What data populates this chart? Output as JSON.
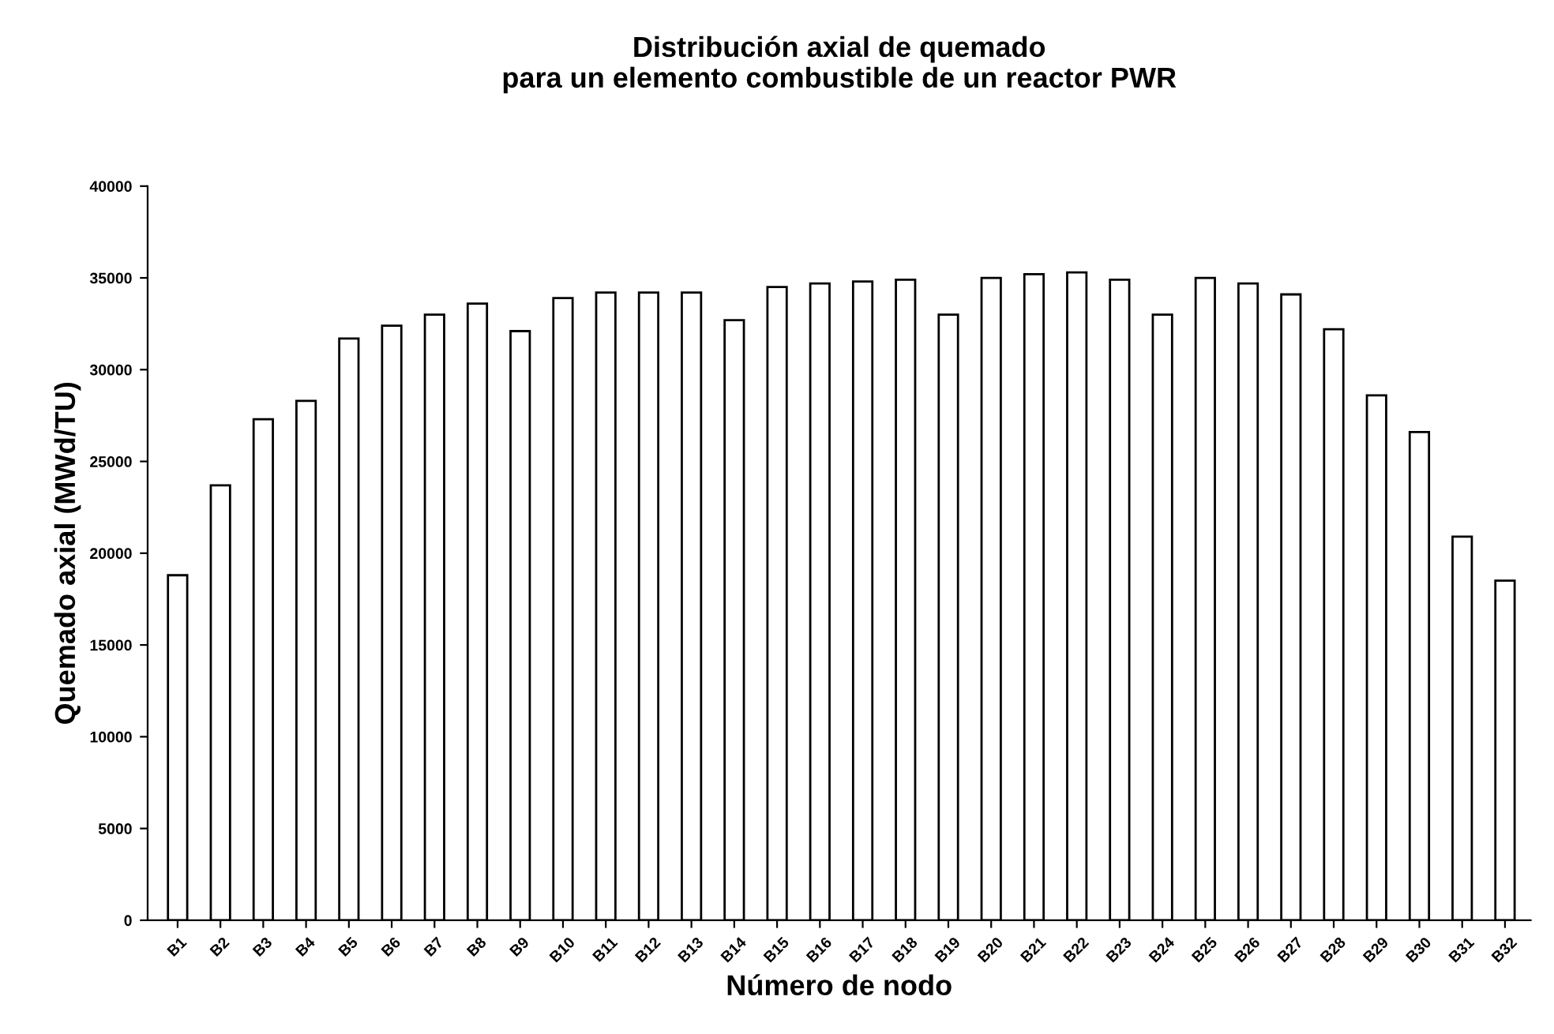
{
  "chart_data": {
    "type": "bar",
    "title": "Distribución axial de quemado\npara un elemento combustible de un reactor PWR",
    "xlabel": "Número de nodo",
    "ylabel": "Quemado axial (MWd/TU)",
    "categories": [
      "B1",
      "B2",
      "B3",
      "B4",
      "B5",
      "B6",
      "B7",
      "B8",
      "B9",
      "B10",
      "B11",
      "B12",
      "B13",
      "B14",
      "B15",
      "B16",
      "B17",
      "B18",
      "B19",
      "B20",
      "B21",
      "B22",
      "B23",
      "B24",
      "B25",
      "B26",
      "B27",
      "B28",
      "B29",
      "B30",
      "B31",
      "B32"
    ],
    "values": [
      18800,
      23700,
      27300,
      28300,
      31700,
      32400,
      33000,
      33600,
      32100,
      33900,
      34200,
      34200,
      34200,
      32700,
      34500,
      34700,
      34800,
      34900,
      33000,
      35000,
      35200,
      35300,
      34900,
      33000,
      35000,
      34700,
      34100,
      32200,
      28600,
      26600,
      20900,
      18500
    ],
    "color": "#ffffff",
    "ylim": [
      0,
      40000
    ],
    "yticks": [
      0,
      5000,
      10000,
      15000,
      20000,
      25000,
      30000,
      35000,
      40000
    ],
    "grid": false,
    "legend": false
  }
}
